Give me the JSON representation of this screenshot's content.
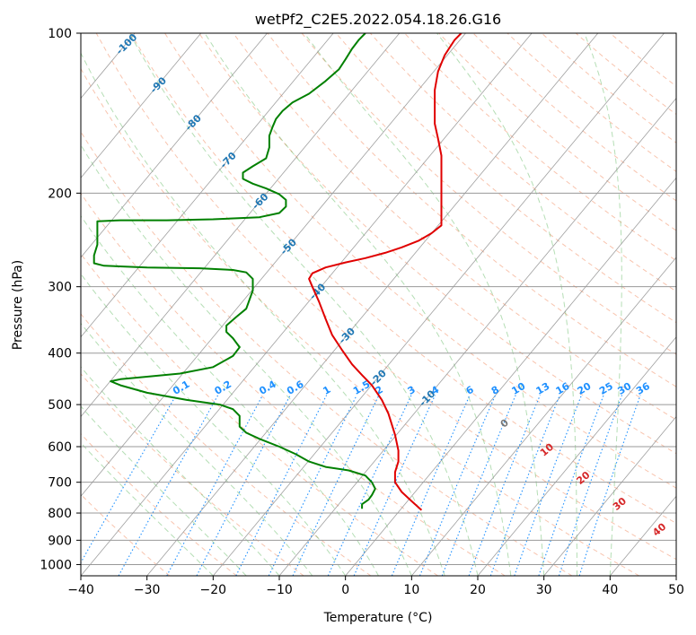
{
  "chart_data": {
    "type": "line",
    "title": "wetPf2_C2E5.2022.054.18.26.G16",
    "xlabel": "Temperature (°C)",
    "ylabel": "Pressure (hPa)",
    "xlim": [
      -40,
      50
    ],
    "ylim": [
      1050,
      100
    ],
    "x_ticks": [
      -40,
      -30,
      -20,
      -10,
      0,
      10,
      20,
      30,
      40,
      50
    ],
    "y_ticks": [
      100,
      200,
      300,
      400,
      500,
      600,
      700,
      800,
      900,
      1000
    ],
    "grid": true,
    "isotherm_labels": [
      -100,
      -90,
      -80,
      -70,
      -60,
      -50,
      -40,
      -30,
      -20,
      -10
    ],
    "mixing_ratio_labels": [
      "0.1",
      "0.2",
      "0.4",
      "0.6",
      "1",
      "1.5",
      "2",
      "3",
      "4",
      "6",
      "8",
      "10",
      "13",
      "16",
      "20",
      "25",
      "30",
      "36"
    ],
    "theta_e_labels": [
      "0",
      "10",
      "20",
      "30",
      "40"
    ],
    "series": [
      {
        "name": "Temperature",
        "color": "#e00000",
        "points": [
          [
            11.5,
            790
          ],
          [
            10,
            760
          ],
          [
            8.5,
            730
          ],
          [
            7.5,
            700
          ],
          [
            7.5,
            670
          ],
          [
            8,
            640
          ],
          [
            8,
            610
          ],
          [
            7.5,
            570
          ],
          [
            6.5,
            520
          ],
          [
            5.5,
            490
          ],
          [
            4,
            460
          ],
          [
            2.5,
            440
          ],
          [
            1,
            420
          ],
          [
            -0.5,
            395
          ],
          [
            -2,
            370
          ],
          [
            -3,
            345
          ],
          [
            -4,
            320
          ],
          [
            -5,
            300
          ],
          [
            -5.5,
            290
          ],
          [
            -5,
            283
          ],
          [
            -3,
            276
          ],
          [
            0,
            270
          ],
          [
            3,
            265
          ],
          [
            6,
            259
          ],
          [
            8.5,
            253
          ],
          [
            11,
            246
          ],
          [
            13,
            238
          ],
          [
            14.5,
            230
          ],
          [
            14.5,
            220
          ],
          [
            14.5,
            208
          ],
          [
            14.5,
            195
          ],
          [
            14.5,
            182
          ],
          [
            14.5,
            170
          ],
          [
            14,
            158
          ],
          [
            13.5,
            148
          ],
          [
            13.5,
            138
          ],
          [
            13.5,
            128
          ],
          [
            14,
            118
          ],
          [
            15,
            110
          ],
          [
            16.5,
            103
          ],
          [
            17.5,
            100
          ]
        ]
      },
      {
        "name": "Dewpoint",
        "color": "#008000",
        "points": [
          [
            2.5,
            785
          ],
          [
            2.5,
            770
          ],
          [
            3.5,
            755
          ],
          [
            4,
            740
          ],
          [
            4.5,
            720
          ],
          [
            4,
            700
          ],
          [
            3,
            680
          ],
          [
            0.5,
            665
          ],
          [
            -3,
            655
          ],
          [
            -5.5,
            640
          ],
          [
            -7.5,
            620
          ],
          [
            -10,
            600
          ],
          [
            -13,
            580
          ],
          [
            -15,
            565
          ],
          [
            -16,
            550
          ],
          [
            -16,
            525
          ],
          [
            -17,
            510
          ],
          [
            -19,
            500
          ],
          [
            -24,
            490
          ],
          [
            -30,
            475
          ],
          [
            -34,
            460
          ],
          [
            -35.5,
            452
          ],
          [
            -34,
            448
          ],
          [
            -30,
            443
          ],
          [
            -25,
            437
          ],
          [
            -20,
            425
          ],
          [
            -17,
            405
          ],
          [
            -16,
            390
          ],
          [
            -17,
            375
          ],
          [
            -18,
            365
          ],
          [
            -18,
            355
          ],
          [
            -16.5,
            342
          ],
          [
            -15,
            330
          ],
          [
            -14,
            305
          ],
          [
            -14,
            290
          ],
          [
            -15,
            282
          ],
          [
            -17,
            279
          ],
          [
            -22,
            277
          ],
          [
            -30,
            276
          ],
          [
            -36.5,
            274
          ],
          [
            -38,
            271
          ],
          [
            -38,
            262
          ],
          [
            -37.5,
            250
          ],
          [
            -37.5,
            232
          ],
          [
            -37.5,
            226
          ],
          [
            -34,
            225
          ],
          [
            -27,
            225
          ],
          [
            -20,
            224
          ],
          [
            -13,
            222
          ],
          [
            -10,
            218
          ],
          [
            -9,
            212
          ],
          [
            -9,
            206
          ],
          [
            -10,
            201
          ],
          [
            -12,
            196
          ],
          [
            -14,
            192
          ],
          [
            -15.5,
            188
          ],
          [
            -15.5,
            183
          ],
          [
            -14,
            178
          ],
          [
            -12,
            172
          ],
          [
            -11.5,
            164
          ],
          [
            -11.5,
            156
          ],
          [
            -11,
            150
          ],
          [
            -10.5,
            145
          ],
          [
            -9.5,
            140
          ],
          [
            -8,
            135
          ],
          [
            -5.5,
            130
          ],
          [
            -3,
            123
          ],
          [
            -1,
            117
          ],
          [
            0,
            112
          ],
          [
            1,
            107
          ],
          [
            2,
            103
          ],
          [
            3,
            100
          ]
        ]
      }
    ]
  }
}
